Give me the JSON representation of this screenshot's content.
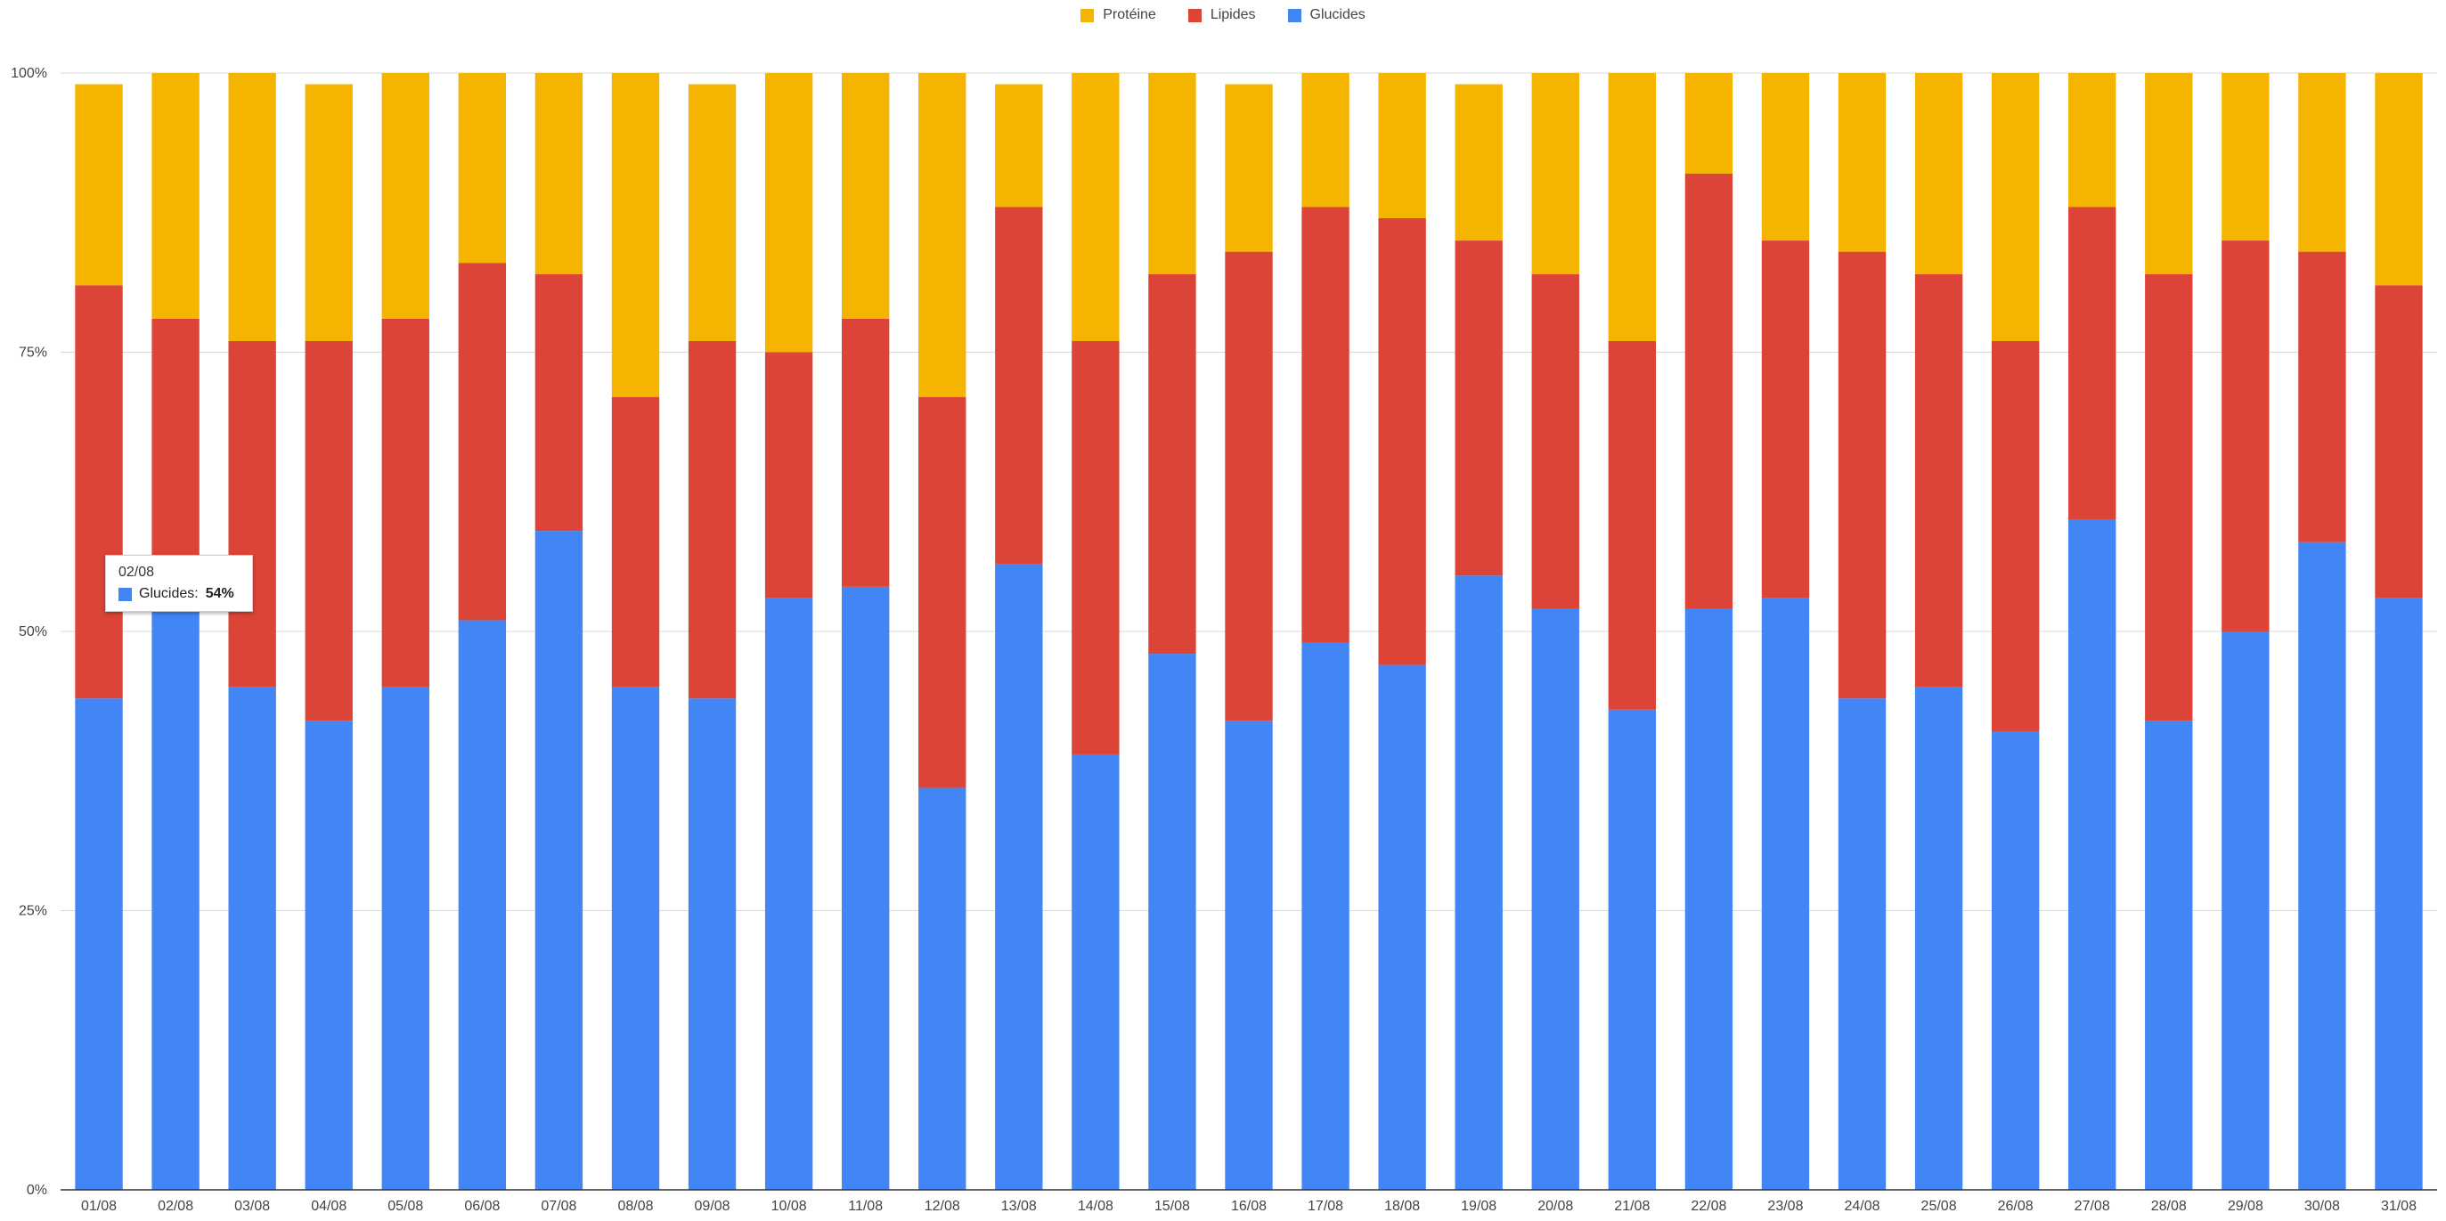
{
  "chart_data": {
    "type": "bar",
    "stacked": "percent",
    "categories": [
      "01/08",
      "02/08",
      "03/08",
      "04/08",
      "05/08",
      "06/08",
      "07/08",
      "08/08",
      "09/08",
      "10/08",
      "11/08",
      "12/08",
      "13/08",
      "14/08",
      "15/08",
      "16/08",
      "17/08",
      "18/08",
      "19/08",
      "20/08",
      "21/08",
      "22/08",
      "23/08",
      "24/08",
      "25/08",
      "26/08",
      "27/08",
      "28/08",
      "29/08",
      "30/08",
      "31/08"
    ],
    "series": [
      {
        "name": "Glucides",
        "color": "#4285f4",
        "values": [
          44,
          54,
          45,
          42,
          45,
          51,
          59,
          45,
          44,
          53,
          54,
          36,
          56,
          39,
          48,
          42,
          49,
          47,
          55,
          52,
          43,
          52,
          53,
          44,
          45,
          41,
          60,
          42,
          50,
          58,
          53
        ]
      },
      {
        "name": "Lipides",
        "color": "#db4437",
        "values": [
          37,
          24,
          31,
          34,
          33,
          32,
          23,
          26,
          32,
          22,
          24,
          35,
          32,
          37,
          34,
          42,
          39,
          40,
          30,
          30,
          33,
          39,
          32,
          40,
          37,
          35,
          28,
          40,
          35,
          26,
          28
        ]
      },
      {
        "name": "Protéine",
        "color": "#f4b400",
        "values": [
          18,
          22,
          24,
          23,
          22,
          17,
          18,
          29,
          23,
          25,
          22,
          29,
          11,
          24,
          18,
          15,
          12,
          13,
          14,
          18,
          24,
          9,
          15,
          16,
          18,
          24,
          12,
          18,
          15,
          16,
          19
        ]
      }
    ],
    "legend_order": [
      "Protéine",
      "Lipides",
      "Glucides"
    ],
    "legend_position": "top",
    "y_ticks": [
      "0%",
      "25%",
      "50%",
      "75%",
      "100%"
    ],
    "y_tick_values": [
      0,
      25,
      50,
      75,
      100
    ],
    "ylim": [
      0,
      100
    ],
    "grid": true,
    "title": "",
    "xlabel": "",
    "ylabel": ""
  },
  "tooltip": {
    "date": "02/08",
    "series": "Glucides",
    "label": "Glucides: ",
    "value": "54%",
    "color": "#4285f4"
  }
}
